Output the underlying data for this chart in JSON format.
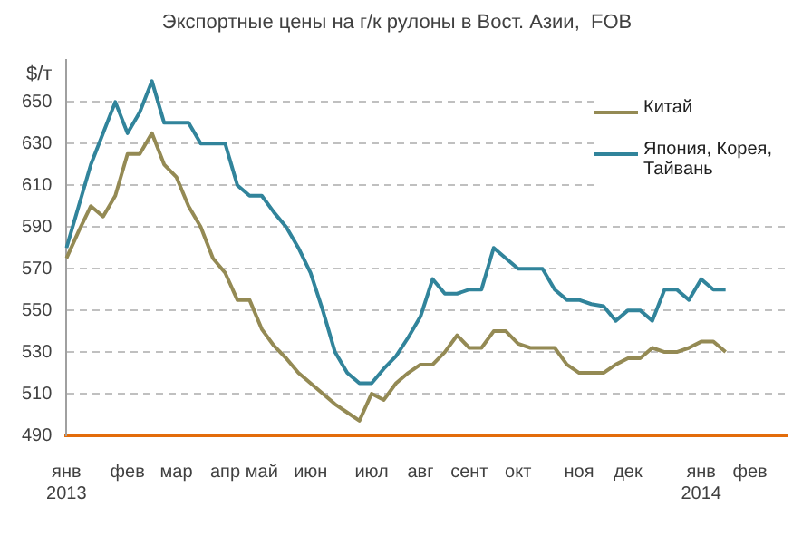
{
  "chart_data": {
    "type": "line",
    "title": "Экспортные цены на г/к рулоны в Вост. Азии,  FOB",
    "ylabel": "$/т",
    "categories": [
      "янв\n2013",
      null,
      null,
      null,
      null,
      "фев",
      null,
      null,
      null,
      "мар",
      null,
      null,
      null,
      "апр",
      null,
      null,
      "май",
      null,
      null,
      null,
      "июн",
      null,
      null,
      null,
      null,
      "июл",
      null,
      null,
      null,
      "авг",
      null,
      null,
      null,
      "сент",
      null,
      null,
      null,
      "окт",
      null,
      null,
      null,
      null,
      "ноя",
      null,
      null,
      null,
      "дек",
      null,
      null,
      null,
      null,
      null,
      "янв\n2014",
      null,
      null,
      null,
      "фев",
      null,
      null,
      null
    ],
    "series": [
      {
        "name": "Китай",
        "color": "#948a54",
        "values": [
          575,
          588,
          600,
          595,
          605,
          625,
          625,
          635,
          620,
          614,
          600,
          590,
          575,
          568,
          555,
          555,
          541,
          533,
          527,
          520,
          515,
          510,
          505,
          501,
          497,
          510,
          507,
          515,
          520,
          524,
          524,
          530,
          538,
          532,
          532,
          540,
          540,
          534,
          532,
          532,
          532,
          524,
          520,
          520,
          520,
          524,
          527,
          527,
          532,
          530,
          530,
          532,
          535,
          535,
          530,
          null,
          null,
          null,
          null,
          null
        ]
      },
      {
        "name": "Япония, Корея, Тайвань",
        "color": "#31849b",
        "values": [
          580,
          600,
          620,
          635,
          650,
          635,
          645,
          660,
          640,
          640,
          640,
          630,
          630,
          630,
          610,
          605,
          605,
          597,
          590,
          580,
          568,
          550,
          530,
          520,
          515,
          515,
          522,
          528,
          537,
          547,
          565,
          558,
          558,
          560,
          560,
          580,
          575,
          570,
          570,
          570,
          560,
          555,
          555,
          553,
          552,
          545,
          550,
          550,
          545,
          560,
          560,
          555,
          565,
          560,
          560,
          null,
          null,
          null,
          null,
          null
        ]
      }
    ],
    "ylim": [
      490,
      670
    ],
    "yticks": [
      490,
      510,
      530,
      550,
      570,
      590,
      610,
      630,
      650
    ],
    "grid": "y",
    "legend": "top right",
    "marker": "none",
    "line_style": "solid"
  }
}
